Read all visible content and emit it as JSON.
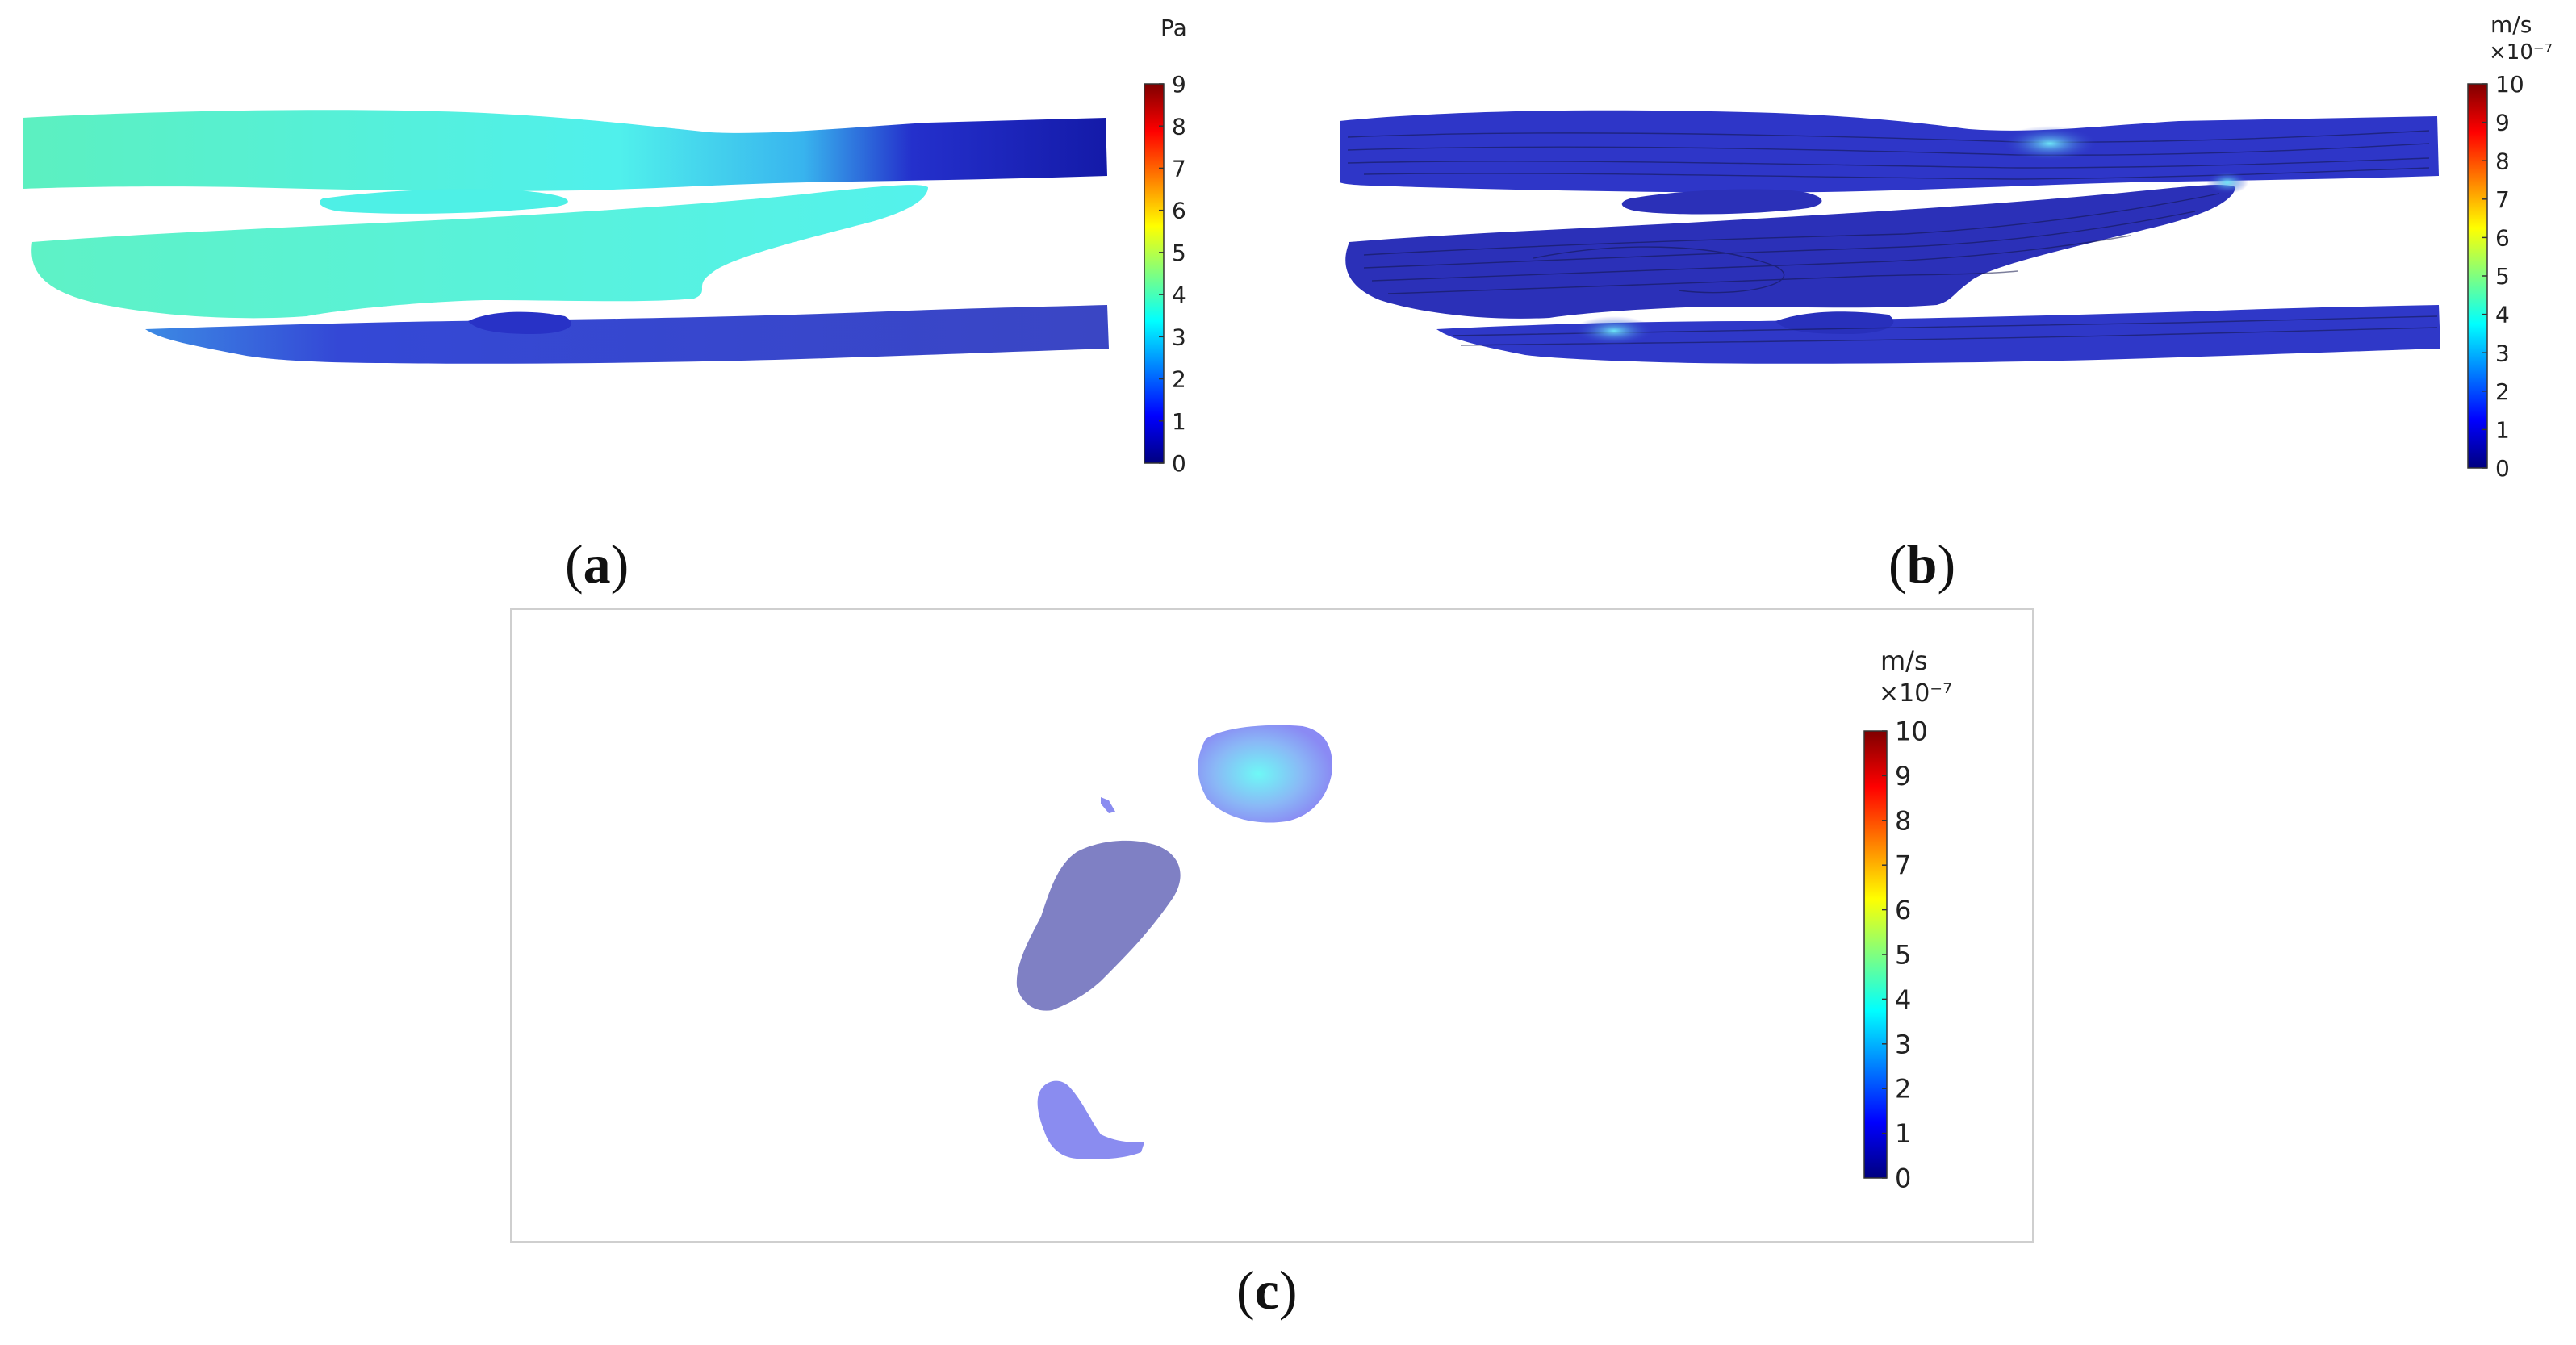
{
  "panels": {
    "a": {
      "caption_letter": "a",
      "colorbar": {
        "unit": "Pa",
        "multiplier": "",
        "ticks": [
          "0",
          "1",
          "2",
          "3",
          "4",
          "5",
          "6",
          "7",
          "8",
          "9"
        ],
        "min": 0,
        "max": 9
      },
      "field_colors": {
        "upper_left": "#5df0c4",
        "upper_mid": "#52f0e8",
        "upper_right": "#1c1ec0",
        "middle": "#58f2e6",
        "lower": "#3a4ad2"
      }
    },
    "b": {
      "caption_letter": "b",
      "colorbar": {
        "unit": "m/s",
        "multiplier": "×10⁻⁷",
        "ticks": [
          "0",
          "1",
          "2",
          "3",
          "4",
          "5",
          "6",
          "7",
          "8",
          "9",
          "10"
        ],
        "min": 0,
        "max": 10
      },
      "field_colors": {
        "base": "#2e36c8",
        "hotspot": "#5ad8f4"
      }
    },
    "c": {
      "caption_letter": "c",
      "colorbar": {
        "unit": "m/s",
        "multiplier": "×10⁻⁷",
        "ticks": [
          "0",
          "1",
          "2",
          "3",
          "4",
          "5",
          "6",
          "7",
          "8",
          "9",
          "10"
        ],
        "min": 0,
        "max": 10
      },
      "field_colors": {
        "blob_top": "#74f2f8",
        "blob_middle": "#7f80c4",
        "blob_bottom": "#8a8cf0"
      }
    }
  }
}
